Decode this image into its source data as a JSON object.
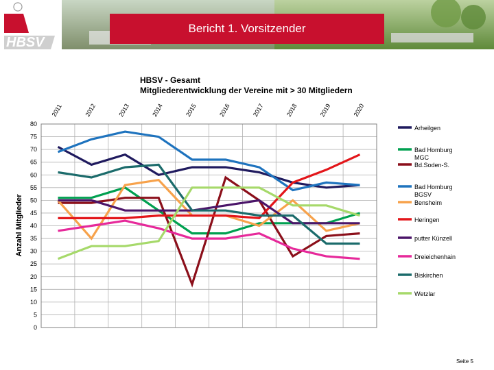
{
  "header": {
    "logo_text": "HBSV",
    "banner_title": "Bericht 1. Vorsitzender"
  },
  "footer": {
    "page_label": "Seite 5"
  },
  "colors": {
    "banner_red": "#c8102e",
    "logo_red": "#c8102e"
  },
  "chart_data": {
    "type": "line",
    "title": "HBSV - Gesamt",
    "subtitle": "Mitgliederentwicklung der Vereine mit > 30 Mitgliedern",
    "ylabel": "Anzahl Mitglieder",
    "xlabel": "",
    "ylim": [
      0,
      80
    ],
    "yticks": [
      0,
      5,
      10,
      15,
      20,
      25,
      30,
      35,
      40,
      45,
      50,
      55,
      60,
      65,
      70,
      75,
      80
    ],
    "grid": true,
    "legend_position": "right",
    "categories": [
      "2011",
      "2012",
      "2013",
      "2014",
      "2015",
      "2016",
      "2017",
      "2018",
      "2019",
      "2020"
    ],
    "series": [
      {
        "name": "Arheilgen",
        "color": "#1f1a5e",
        "values": [
          71,
          64,
          68,
          60,
          63,
          63,
          61,
          57,
          55,
          56
        ]
      },
      {
        "name": "Bad Homburg MGC",
        "color": "#00a050",
        "values": [
          51,
          51,
          55,
          46,
          37,
          37,
          41,
          41,
          41,
          45
        ]
      },
      {
        "name": "Bd.Soden-S.",
        "color": "#8b0f1a",
        "values": [
          49,
          49,
          51,
          51,
          17,
          59,
          50,
          28,
          36,
          37
        ]
      },
      {
        "name": "Bad Homburg BGSV",
        "color": "#1e73be",
        "values": [
          69,
          74,
          77,
          75,
          66,
          66,
          63,
          54,
          57,
          56
        ]
      },
      {
        "name": "Bensheim",
        "color": "#f7a24b",
        "values": [
          50,
          35,
          56,
          58,
          44,
          44,
          40,
          50,
          38,
          41
        ]
      },
      {
        "name": "Heringen",
        "color": "#e3161a",
        "values": [
          43,
          43,
          43,
          44,
          44,
          44,
          43,
          57,
          62,
          68
        ]
      },
      {
        "name": "putter Künzell",
        "color": "#4b1569",
        "values": [
          50,
          50,
          46,
          46,
          46,
          48,
          50,
          41,
          41,
          41
        ]
      },
      {
        "name": "Dreieichenhain",
        "color": "#e6299a",
        "values": [
          38,
          40,
          42,
          39,
          35,
          35,
          37,
          31,
          28,
          27
        ]
      },
      {
        "name": "Biskirchen",
        "color": "#1b6b6b",
        "values": [
          61,
          59,
          63,
          64,
          46,
          46,
          44,
          44,
          33,
          33
        ]
      },
      {
        "name": "Wetzlar",
        "color": "#a6d96a",
        "values": [
          27,
          32,
          32,
          34,
          55,
          55,
          55,
          48,
          48,
          44
        ]
      }
    ]
  }
}
